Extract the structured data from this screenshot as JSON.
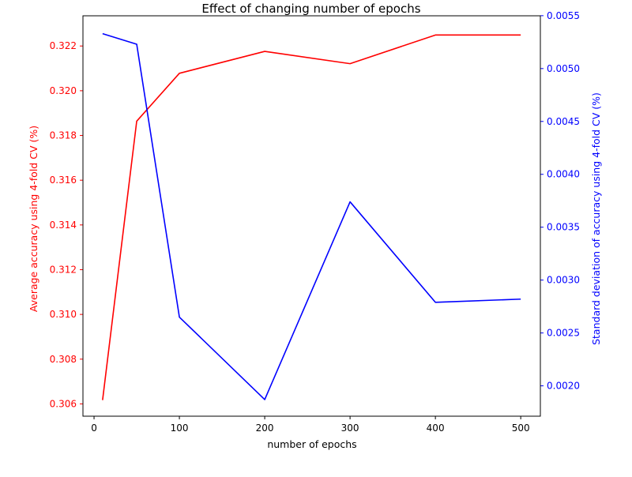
{
  "chart_data": {
    "type": "line",
    "title": "Effect of changing number of epochs",
    "xlabel": "number of epochs",
    "x": [
      10,
      50,
      100,
      200,
      300,
      400,
      500
    ],
    "xlim": [
      -13,
      523
    ],
    "xticks": [
      0,
      100,
      200,
      300,
      400,
      500
    ],
    "y_left": {
      "label": "Average accuracy using 4-fold CV (%)",
      "color": "#ff0000",
      "lim": [
        0.30545,
        0.32335
      ],
      "ticks": [
        "0.306",
        "0.308",
        "0.310",
        "0.312",
        "0.314",
        "0.316",
        "0.318",
        "0.320",
        "0.322"
      ]
    },
    "y_right": {
      "label": "Standard deviation of accuracy using 4-fold CV (%)",
      "color": "#0000ff",
      "lim": [
        0.001713,
        0.005499
      ],
      "ticks": [
        "0.0020",
        "0.0025",
        "0.0030",
        "0.0035",
        "0.0040",
        "0.0045",
        "0.0050",
        "0.0055"
      ]
    },
    "series": [
      {
        "axis": "left",
        "color": "#ff0000",
        "values": [
          0.30617,
          0.31864,
          0.32078,
          0.32176,
          0.32121,
          0.32249,
          0.32249
        ]
      },
      {
        "axis": "right",
        "color": "#0000ff",
        "values": [
          0.00533,
          0.00523,
          0.00265,
          0.00187,
          0.00374,
          0.00279,
          0.00282
        ]
      }
    ],
    "grid": false
  }
}
